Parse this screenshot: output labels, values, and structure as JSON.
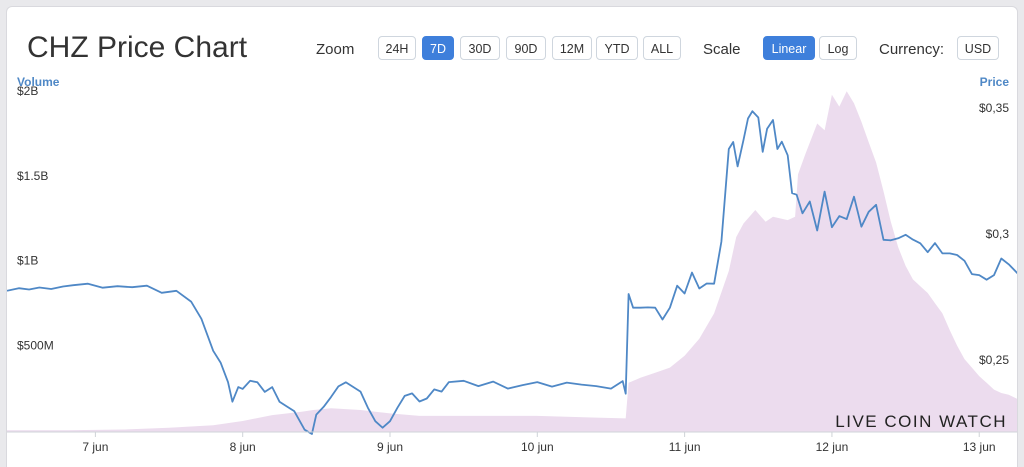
{
  "title": "CHZ Price Chart",
  "controls": {
    "zoom_label": "Zoom",
    "zoom_options": [
      "24H",
      "7D",
      "30D",
      "90D",
      "12M",
      "YTD",
      "ALL"
    ],
    "zoom_selected": "7D",
    "scale_label": "Scale",
    "scale_options": [
      "Linear",
      "Log"
    ],
    "scale_selected": "Linear",
    "currency_label": "Currency:",
    "currency_value": "USD"
  },
  "watermark": "LIVE COIN WATCH",
  "colors": {
    "price_line": "#4f88c6",
    "volume_fill": "#ecdcee",
    "axis_title": "#4f88c6",
    "active_button": "#3e7fdb"
  },
  "chart_data": {
    "type": "line",
    "x_axis": {
      "ticks": [
        "7 jun",
        "8 jun",
        "9 jun",
        "10 jun",
        "11 jun",
        "12 jun",
        "13 jun"
      ],
      "range": [
        6.4,
        13.27
      ]
    },
    "y_axis_left": {
      "title": "Volume",
      "ticks": [
        "$500M",
        "$1B",
        "$1.5B",
        "$2B"
      ],
      "tick_values": [
        500000000,
        1000000000,
        1500000000,
        2000000000
      ],
      "range": [
        0,
        2000000000
      ]
    },
    "y_axis_right": {
      "title": "Price",
      "ticks": [
        "$0,25",
        "$0,3",
        "$0,35"
      ],
      "tick_values": [
        0.25,
        0.3,
        0.35
      ],
      "range": [
        0.2215,
        0.3575
      ]
    },
    "grid": false,
    "series": [
      {
        "type": "area",
        "axis": "left",
        "x": [
          6.4,
          6.8,
          7.2,
          7.5,
          7.8,
          8.0,
          8.2,
          8.4,
          8.48,
          8.6,
          8.8,
          9.0,
          9.2,
          9.4,
          9.6,
          9.8,
          10.0,
          10.2,
          10.4,
          10.6,
          10.62,
          10.7,
          10.8,
          10.9,
          11.0,
          11.1,
          11.2,
          11.3,
          11.35,
          11.4,
          11.48,
          11.55,
          11.6,
          11.7,
          11.75,
          11.77,
          11.82,
          11.9,
          11.95,
          12.0,
          12.05,
          12.1,
          12.15,
          12.2,
          12.25,
          12.3,
          12.35,
          12.4,
          12.45,
          12.5,
          12.55,
          12.6,
          12.65,
          12.7,
          12.75,
          12.8,
          12.85,
          12.9,
          12.95,
          13.0,
          13.05,
          13.1,
          13.15,
          13.2,
          13.27
        ],
        "values": [
          10000000,
          10000000,
          15000000,
          25000000,
          40000000,
          65000000,
          100000000,
          120000000,
          130000000,
          140000000,
          130000000,
          110000000,
          95000000,
          95000000,
          95000000,
          95000000,
          95000000,
          90000000,
          85000000,
          80000000,
          290000000,
          320000000,
          350000000,
          380000000,
          450000000,
          550000000,
          700000000,
          950000000,
          1150000000,
          1230000000,
          1310000000,
          1240000000,
          1270000000,
          1250000000,
          1270000000,
          1520000000,
          1640000000,
          1820000000,
          1780000000,
          1990000000,
          1920000000,
          2010000000,
          1940000000,
          1830000000,
          1710000000,
          1590000000,
          1420000000,
          1240000000,
          1090000000,
          980000000,
          900000000,
          860000000,
          820000000,
          760000000,
          700000000,
          600000000,
          510000000,
          430000000,
          380000000,
          330000000,
          290000000,
          250000000,
          230000000,
          220000000,
          190000000
        ]
      },
      {
        "type": "line",
        "axis": "right",
        "x": [
          6.4,
          6.48,
          6.55,
          6.62,
          6.7,
          6.78,
          6.85,
          6.95,
          7.05,
          7.15,
          7.25,
          7.35,
          7.45,
          7.55,
          7.65,
          7.72,
          7.8,
          7.85,
          7.9,
          7.93,
          7.97,
          8.0,
          8.05,
          8.1,
          8.15,
          8.2,
          8.25,
          8.3,
          8.35,
          8.42,
          8.47,
          8.5,
          8.55,
          8.6,
          8.65,
          8.7,
          8.8,
          8.85,
          8.9,
          8.95,
          9.0,
          9.05,
          9.1,
          9.15,
          9.2,
          9.25,
          9.3,
          9.35,
          9.4,
          9.5,
          9.6,
          9.7,
          9.8,
          9.9,
          10.0,
          10.1,
          10.2,
          10.3,
          10.4,
          10.5,
          10.58,
          10.6,
          10.62,
          10.65,
          10.7,
          10.75,
          10.8,
          10.85,
          10.9,
          10.95,
          11.0,
          11.05,
          11.1,
          11.15,
          11.2,
          11.25,
          11.3,
          11.33,
          11.36,
          11.4,
          11.43,
          11.46,
          11.5,
          11.53,
          11.56,
          11.6,
          11.63,
          11.66,
          11.7,
          11.73,
          11.76,
          11.8,
          11.85,
          11.9,
          11.95,
          12.0,
          12.05,
          12.1,
          12.15,
          12.2,
          12.25,
          12.3,
          12.35,
          12.4,
          12.45,
          12.5,
          12.55,
          12.6,
          12.65,
          12.7,
          12.75,
          12.8,
          12.85,
          12.9,
          12.95,
          13.0,
          13.05,
          13.1,
          13.15,
          13.2,
          13.27
        ],
        "values": [
          0.2775,
          0.2785,
          0.278,
          0.2788,
          0.2782,
          0.2792,
          0.2797,
          0.2803,
          0.2787,
          0.2793,
          0.2789,
          0.2795,
          0.2767,
          0.2775,
          0.2732,
          0.2664,
          0.2537,
          0.249,
          0.2413,
          0.2335,
          0.2393,
          0.2386,
          0.2418,
          0.2412,
          0.2374,
          0.2393,
          0.2335,
          0.2316,
          0.2298,
          0.2224,
          0.2207,
          0.2284,
          0.2315,
          0.2354,
          0.2396,
          0.2412,
          0.2375,
          0.2311,
          0.2258,
          0.2232,
          0.2258,
          0.2311,
          0.2358,
          0.2368,
          0.2336,
          0.2348,
          0.2384,
          0.2375,
          0.2413,
          0.2418,
          0.2397,
          0.2415,
          0.2387,
          0.2401,
          0.2413,
          0.2395,
          0.2411,
          0.2403,
          0.2397,
          0.2387,
          0.2417,
          0.2367,
          0.2762,
          0.2708,
          0.2708,
          0.2709,
          0.2708,
          0.2661,
          0.2708,
          0.2795,
          0.2764,
          0.2847,
          0.2784,
          0.2804,
          0.2803,
          0.297,
          0.3337,
          0.3365,
          0.3268,
          0.3373,
          0.3458,
          0.3487,
          0.3462,
          0.3326,
          0.3417,
          0.3452,
          0.3337,
          0.3366,
          0.3312,
          0.3162,
          0.3156,
          0.3082,
          0.3129,
          0.3014,
          0.3168,
          0.3027,
          0.3071,
          0.3059,
          0.3148,
          0.3029,
          0.3088,
          0.3116,
          0.2977,
          0.2975,
          0.2983,
          0.2997,
          0.2978,
          0.2963,
          0.2928,
          0.2964,
          0.2923,
          0.2923,
          0.2917,
          0.2894,
          0.2841,
          0.2837,
          0.2819,
          0.2837,
          0.2903,
          0.288,
          0.2838
        ]
      }
    ]
  }
}
